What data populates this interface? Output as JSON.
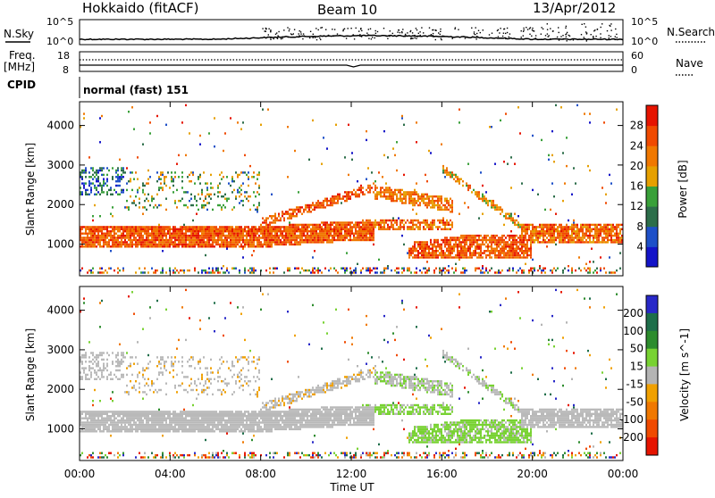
{
  "header": {
    "station": "Hokkaido (fitACF)",
    "beam": "Beam 10",
    "date": "13/Apr/2012",
    "cpid_text": "normal (fast) 151"
  },
  "top_panels": {
    "nsky_label": "N.Sky",
    "freq_label": "Freq.",
    "freq_unit": "[MHz]",
    "cpid_label": "CPID",
    "nsearch_label": "N.Search",
    "nave_label": "Nave",
    "left_ticks_top": [
      "10^5",
      "10^0"
    ],
    "right_ticks_top": [
      "10^5",
      "10^0"
    ],
    "left_ticks_freq": [
      "18",
      "8"
    ],
    "right_ticks_freq": [
      "60",
      "0"
    ]
  },
  "colors": {
    "power": [
      "#1414c8",
      "#1e50c8",
      "#2d6e4a",
      "#39a039",
      "#e6a000",
      "#f07800",
      "#f04a00",
      "#e61400"
    ],
    "velocity": [
      "#2828c8",
      "#1e6e4a",
      "#2d8c2d",
      "#78d232",
      "#b4b4b4",
      "#f0a000",
      "#f07800",
      "#f04a00",
      "#e61400"
    ],
    "grey": "#b9b9b9"
  },
  "chart_data": [
    {
      "type": "heatmap",
      "title": "Power",
      "ylabel": "Slant Range [km]",
      "xlabel": "",
      "ylim": [
        200,
        4600
      ],
      "y_ticks": [
        1000,
        2000,
        3000,
        4000
      ],
      "colorbar_label": "Power [dB]",
      "colorbar_ticks": [
        4,
        8,
        12,
        16,
        20,
        24,
        28
      ],
      "colorbar_range": [
        0,
        32
      ]
    },
    {
      "type": "heatmap",
      "title": "Velocity",
      "ylabel": "Slant Range [km]",
      "xlabel": "Time UT",
      "ylim": [
        200,
        4600
      ],
      "y_ticks": [
        1000,
        2000,
        3000,
        4000
      ],
      "colorbar_label": "Velocity [m s^-1]",
      "colorbar_ticks": [
        200,
        100,
        50,
        15,
        -15,
        -50,
        -100,
        -200
      ],
      "x_ticks": [
        "00:00",
        "04:00",
        "08:00",
        "12:00",
        "16:00",
        "20:00",
        "00:00"
      ]
    }
  ]
}
